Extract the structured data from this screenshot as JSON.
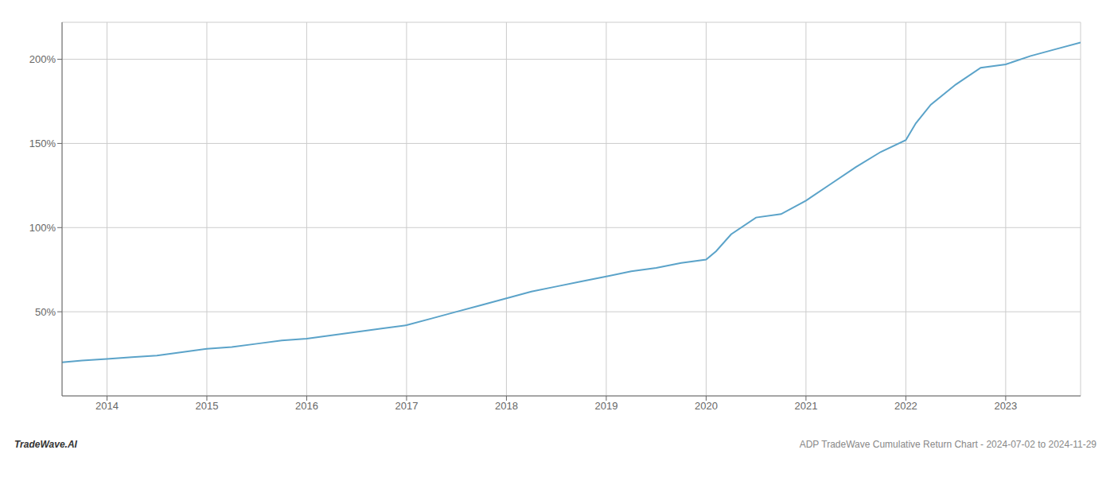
{
  "chart_data": {
    "type": "line",
    "x": [
      2013.55,
      2013.75,
      2014.0,
      2014.25,
      2014.5,
      2014.75,
      2015.0,
      2015.25,
      2015.5,
      2015.75,
      2016.0,
      2016.25,
      2016.5,
      2016.75,
      2017.0,
      2017.25,
      2017.5,
      2017.75,
      2018.0,
      2018.25,
      2018.5,
      2018.75,
      2019.0,
      2019.25,
      2019.5,
      2019.75,
      2020.0,
      2020.1,
      2020.25,
      2020.5,
      2020.75,
      2021.0,
      2021.25,
      2021.5,
      2021.75,
      2022.0,
      2022.1,
      2022.25,
      2022.5,
      2022.75,
      2023.0,
      2023.25,
      2023.5,
      2023.75
    ],
    "values": [
      20,
      21,
      22,
      23,
      24,
      26,
      28,
      29,
      31,
      33,
      34,
      36,
      38,
      40,
      42,
      46,
      50,
      54,
      58,
      62,
      65,
      68,
      71,
      74,
      76,
      79,
      81,
      86,
      96,
      106,
      108,
      116,
      126,
      136,
      145,
      152,
      162,
      173,
      185,
      195,
      197,
      202,
      206,
      210
    ],
    "color": "#5ba3c9",
    "xlim": [
      2013.55,
      2023.75
    ],
    "xticks": [
      2014,
      2015,
      2016,
      2017,
      2018,
      2019,
      2020,
      2021,
      2022,
      2023
    ],
    "ylim": [
      0,
      222
    ],
    "yticks": [
      {
        "value": 50,
        "label": "50%"
      },
      {
        "value": 100,
        "label": "100%"
      },
      {
        "value": 150,
        "label": "150%"
      },
      {
        "value": 200,
        "label": "200%"
      }
    ],
    "grid": true,
    "annotations": [
      "TradeWave.AI",
      "ADP TradeWave Cumulative Return Chart - 2024-07-02 to 2024-11-29"
    ]
  }
}
